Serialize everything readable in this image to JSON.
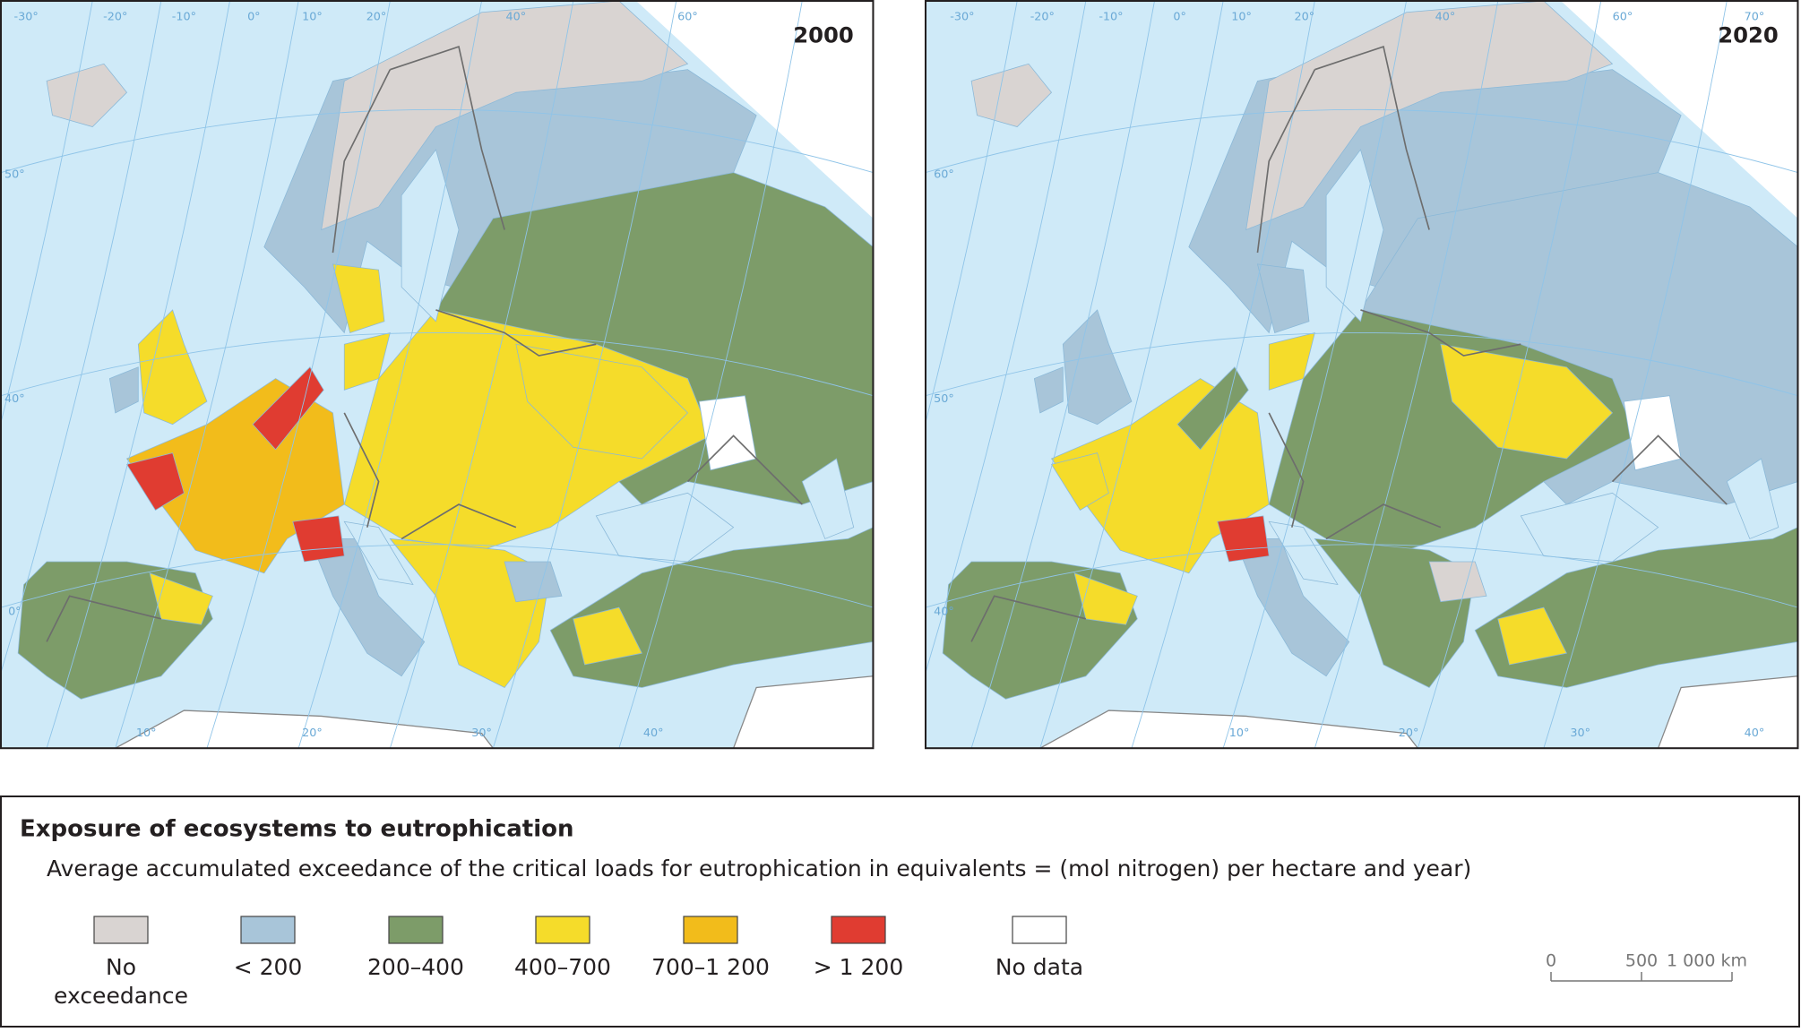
{
  "maps": [
    {
      "title": "2000",
      "graticule_labels": [
        "-30°",
        "-20°",
        "-10°",
        "0°",
        "10°",
        "20°",
        "40°",
        "60°",
        "50°",
        "40°",
        "0°",
        "10°",
        "20°",
        "30°",
        "40°"
      ]
    },
    {
      "title": "2020",
      "graticule_labels": [
        "-30°",
        "-20°",
        "-10°",
        "0°",
        "10°",
        "20°",
        "40°",
        "60°",
        "70°",
        "60°",
        "50°",
        "40°",
        "10°",
        "20°",
        "30°",
        "40°"
      ]
    }
  ],
  "legend": {
    "title": "Exposure of ecosystems to eutrophication",
    "subtitle": "Average accumulated exceedance of the critical loads for eutrophication in equivalents = (mol nitrogen) per hectare and year)",
    "items": [
      {
        "label": "No exceedance",
        "color": "#d9d4d2"
      },
      {
        "label": "< 200",
        "color": "#a8c5d9"
      },
      {
        "label": "200–400",
        "color": "#7d9c69"
      },
      {
        "label": "400–700",
        "color": "#f5dc2a"
      },
      {
        "label": "700–1 200",
        "color": "#f2bc1b"
      },
      {
        "label": "> 1 200",
        "color": "#e03c31"
      },
      {
        "label": "No data",
        "color": "#ffffff"
      }
    ]
  },
  "scale_bar": {
    "labels": [
      "0",
      "500",
      "1 000 km"
    ]
  }
}
